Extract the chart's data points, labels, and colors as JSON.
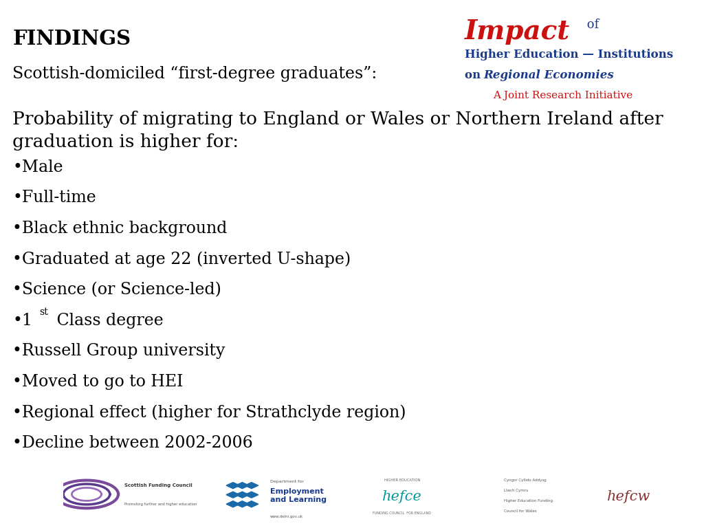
{
  "findings_title": "FINDINGS",
  "subtitle": "Scottish-domiciled “first-degree graduates”:",
  "body_title_line1": "Probability of migrating to England or Wales or Northern Ireland after",
  "body_title_line2": "graduation is higher for:",
  "bullet_points": [
    "Male",
    "Full-time",
    "Black ethnic background",
    "Graduated at age 22 (inverted U-shape)",
    "Science (or Science-led)",
    "Russell Group university",
    "Moved to go to HEI",
    "Regional effect (higher for Strathclyde region)",
    "Decline between 2002-2006"
  ],
  "background_color": "#ffffff",
  "text_color": "#000000",
  "logo_red": "#cc1111",
  "logo_blue": "#1a3a8c",
  "logo_darkred": "#cc1111",
  "teal": "#009999",
  "brown_red": "#8b3030"
}
